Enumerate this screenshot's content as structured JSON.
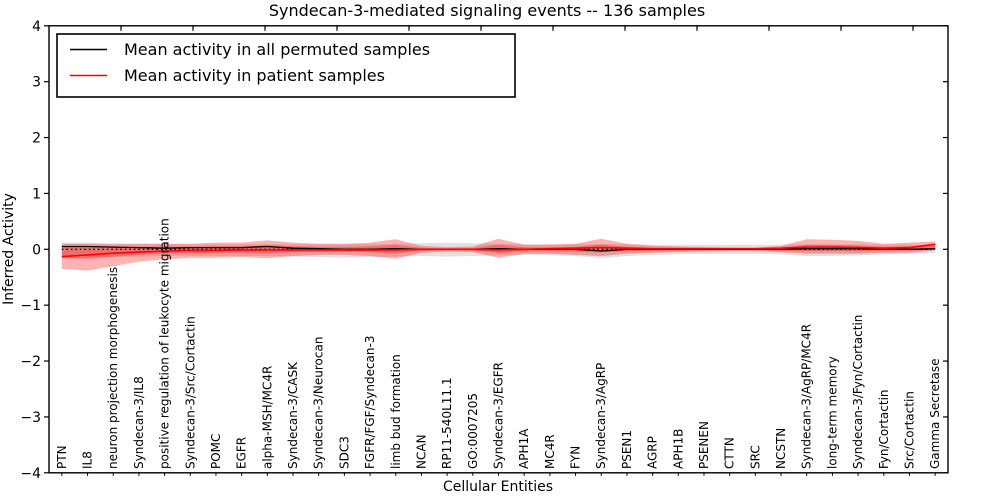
{
  "title": "Syndecan-3-mediated signaling events -- 136 samples",
  "legend": {
    "entries": [
      {
        "label": "Mean activity in all permuted samples",
        "color": "#000000"
      },
      {
        "label": "Mean activity in patient samples",
        "color": "#ff0000"
      }
    ]
  },
  "axes": {
    "x_label": "Cellular Entities",
    "y_label": "Inferred Activity",
    "y_tick_labels": [
      "4",
      "3",
      "2",
      "1",
      "0",
      "−1",
      "−2",
      "−3",
      "−4"
    ],
    "y_tick_values": [
      4,
      3,
      2,
      1,
      0,
      -1,
      -2,
      -3,
      -4
    ]
  },
  "colors": {
    "permuted_line": "#000000",
    "patient_line": "#ff0000",
    "patient_band": "#ff0000",
    "permuted_band": "#bdbdbd",
    "zero_line": "#000000",
    "frame": "#000000",
    "background": "#ffffff"
  },
  "chart_data": {
    "type": "line",
    "title": "Syndecan-3-mediated signaling events -- 136 samples",
    "xlabel": "Cellular Entities",
    "ylabel": "Inferred Activity",
    "ylim": [
      -4,
      4
    ],
    "grid": false,
    "legend_position": "upper left",
    "zero_reference_line": 0,
    "categories": [
      "PTN",
      "IL8",
      "neuron projection morphogenesis",
      "Syndecan-3/IL8",
      "positive regulation of leukocyte migration",
      "Syndecan-3/Src/Cortactin",
      "POMC",
      "EGFR",
      "alpha-MSH/MC4R",
      "Syndecan-3/CASK",
      "Syndecan-3/Neurocan",
      "SDC3",
      "FGFR/FGF/Syndecan-3",
      "limb bud formation",
      "NCAN",
      "RP11-540L11.1",
      "GO:0007205",
      "Syndecan-3/EGFR",
      "APH1A",
      "MC4R",
      "FYN",
      "Syndecan-3/AgRP",
      "PSEN1",
      "AGRP",
      "APH1B",
      "PSENEN",
      "CTTN",
      "SRC",
      "NCSTN",
      "Syndecan-3/AgRP/MC4R",
      "long-term memory",
      "Syndecan-3/Fyn/Cortactin",
      "Fyn/Cortactin",
      "Src/Cortactin",
      "Gamma Secretase"
    ],
    "series": [
      {
        "name": "Mean activity in all permuted samples",
        "kind": "line",
        "color": "#000000",
        "values": [
          0.05,
          0.05,
          0.04,
          0.03,
          0.02,
          0.03,
          0.03,
          0.03,
          0.05,
          0.02,
          0.01,
          0.0,
          0.0,
          0.01,
          0.0,
          0.0,
          0.0,
          0.01,
          0.0,
          0.0,
          0.0,
          -0.03,
          0.0,
          0.0,
          0.0,
          0.0,
          0.0,
          0.0,
          0.0,
          0.01,
          0.01,
          0.01,
          0.0,
          0.0,
          0.01
        ]
      },
      {
        "name": "Mean activity in patient samples",
        "kind": "line",
        "color": "#ff0000",
        "values": [
          -0.13,
          -0.1,
          -0.07,
          -0.05,
          -0.03,
          -0.02,
          -0.02,
          -0.01,
          -0.01,
          -0.01,
          -0.01,
          -0.01,
          -0.01,
          -0.01,
          0.0,
          0.0,
          0.0,
          -0.01,
          0.0,
          0.01,
          0.02,
          0.03,
          0.02,
          0.01,
          0.01,
          0.01,
          0.01,
          0.01,
          0.02,
          0.04,
          0.04,
          0.03,
          0.02,
          0.03,
          0.09
        ]
      },
      {
        "name": "Permuted samples spread",
        "kind": "band",
        "color": "#bdbdbd",
        "hi": [
          0.12,
          0.12,
          0.11,
          0.1,
          0.1,
          0.09,
          0.09,
          0.09,
          0.09,
          0.09,
          0.09,
          0.09,
          0.09,
          0.1,
          0.11,
          0.12,
          0.11,
          0.1,
          0.09,
          0.09,
          0.09,
          0.09,
          0.09,
          0.08,
          0.08,
          0.08,
          0.08,
          0.08,
          0.08,
          0.09,
          0.09,
          0.09,
          0.08,
          0.08,
          0.08
        ],
        "lo": [
          -0.15,
          -0.15,
          -0.14,
          -0.13,
          -0.12,
          -0.12,
          -0.12,
          -0.12,
          -0.12,
          -0.13,
          -0.14,
          -0.15,
          -0.14,
          -0.13,
          -0.12,
          -0.13,
          -0.12,
          -0.11,
          -0.1,
          -0.11,
          -0.12,
          -0.16,
          -0.12,
          -0.1,
          -0.09,
          -0.08,
          -0.08,
          -0.08,
          -0.09,
          -0.12,
          -0.12,
          -0.11,
          -0.09,
          -0.08,
          -0.07
        ]
      },
      {
        "name": "Patient samples spread",
        "kind": "band",
        "color": "#ff0000",
        "hi": [
          0.1,
          0.1,
          0.09,
          0.1,
          0.1,
          0.1,
          0.12,
          0.12,
          0.16,
          0.12,
          0.1,
          0.1,
          0.12,
          0.18,
          0.06,
          0.04,
          0.05,
          0.19,
          0.08,
          0.08,
          0.1,
          0.19,
          0.1,
          0.06,
          0.05,
          0.04,
          0.03,
          0.03,
          0.06,
          0.18,
          0.17,
          0.15,
          0.1,
          0.12,
          0.14
        ],
        "lo": [
          -0.35,
          -0.38,
          -0.3,
          -0.22,
          -0.18,
          -0.15,
          -0.15,
          -0.14,
          -0.16,
          -0.12,
          -0.1,
          -0.1,
          -0.12,
          -0.17,
          -0.06,
          -0.04,
          -0.05,
          -0.15,
          -0.08,
          -0.08,
          -0.1,
          -0.12,
          -0.08,
          -0.06,
          -0.05,
          -0.04,
          -0.03,
          -0.03,
          -0.05,
          -0.08,
          -0.08,
          -0.08,
          -0.06,
          -0.06,
          -0.02
        ]
      }
    ]
  }
}
